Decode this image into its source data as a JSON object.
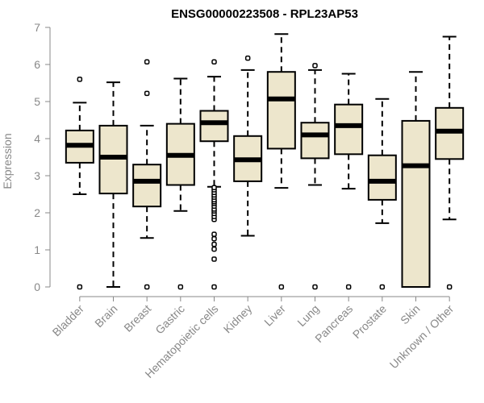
{
  "chart_data": {
    "type": "boxplot",
    "title": "ENSG00000223508 - RPL23AP53",
    "ylabel": "Expression",
    "xlabel": "",
    "ylim": [
      0,
      7
    ],
    "yticks": [
      0,
      1,
      2,
      3,
      4,
      5,
      6,
      7
    ],
    "grid": false,
    "colors": {
      "box_fill": "#ede6cc",
      "box_stroke": "#000000",
      "axis": "#888888"
    },
    "categories": [
      "Bladder",
      "Brain",
      "Breast",
      "Gastric",
      "Hematopoietic cells",
      "Kidney",
      "Liver",
      "Lung",
      "Pancreas",
      "Prostate",
      "Skin",
      "Unknown / Other"
    ],
    "boxes": [
      {
        "name": "Bladder",
        "whisker_low": 2.5,
        "q1": 3.35,
        "median": 3.82,
        "q3": 4.22,
        "whisker_high": 4.97,
        "outliers": [
          0,
          5.6
        ]
      },
      {
        "name": "Brain",
        "whisker_low": 0.0,
        "q1": 2.52,
        "median": 3.5,
        "q3": 4.35,
        "whisker_high": 5.52,
        "outliers": []
      },
      {
        "name": "Breast",
        "whisker_low": 1.32,
        "q1": 2.17,
        "median": 2.85,
        "q3": 3.3,
        "whisker_high": 4.35,
        "outliers": [
          0,
          5.22,
          6.07
        ]
      },
      {
        "name": "Gastric",
        "whisker_low": 2.05,
        "q1": 2.75,
        "median": 3.55,
        "q3": 4.4,
        "whisker_high": 5.62,
        "outliers": [
          0
        ]
      },
      {
        "name": "Hematopoietic cells",
        "whisker_low": 2.7,
        "q1": 3.93,
        "median": 4.43,
        "q3": 4.75,
        "whisker_high": 5.67,
        "outliers": [
          0,
          0.75,
          1.02,
          1.15,
          1.3,
          1.42,
          1.82,
          1.9,
          1.98,
          2.05,
          2.1,
          2.18,
          2.25,
          2.3,
          2.35,
          2.42,
          2.48,
          2.55,
          2.62,
          2.68,
          6.07
        ]
      },
      {
        "name": "Kidney",
        "whisker_low": 1.38,
        "q1": 2.85,
        "median": 3.43,
        "q3": 4.07,
        "whisker_high": 5.85,
        "outliers": [
          6.17
        ]
      },
      {
        "name": "Liver",
        "whisker_low": 2.67,
        "q1": 3.73,
        "median": 5.07,
        "q3": 5.8,
        "whisker_high": 6.82,
        "outliers": [
          0
        ]
      },
      {
        "name": "Lung",
        "whisker_low": 2.75,
        "q1": 3.47,
        "median": 4.1,
        "q3": 4.43,
        "whisker_high": 5.85,
        "outliers": [
          0,
          5.97
        ]
      },
      {
        "name": "Pancreas",
        "whisker_low": 2.65,
        "q1": 3.58,
        "median": 4.35,
        "q3": 4.92,
        "whisker_high": 5.75,
        "outliers": [
          0
        ]
      },
      {
        "name": "Prostate",
        "whisker_low": 1.72,
        "q1": 2.35,
        "median": 2.85,
        "q3": 3.55,
        "whisker_high": 5.07,
        "outliers": [
          0
        ]
      },
      {
        "name": "Skin",
        "whisker_low": 0.0,
        "q1": 0.0,
        "median": 3.27,
        "q3": 4.48,
        "whisker_high": 5.8,
        "outliers": []
      },
      {
        "name": "Unknown / Other",
        "whisker_low": 1.82,
        "q1": 3.45,
        "median": 4.2,
        "q3": 4.83,
        "whisker_high": 6.75,
        "outliers": [
          0
        ]
      }
    ]
  }
}
